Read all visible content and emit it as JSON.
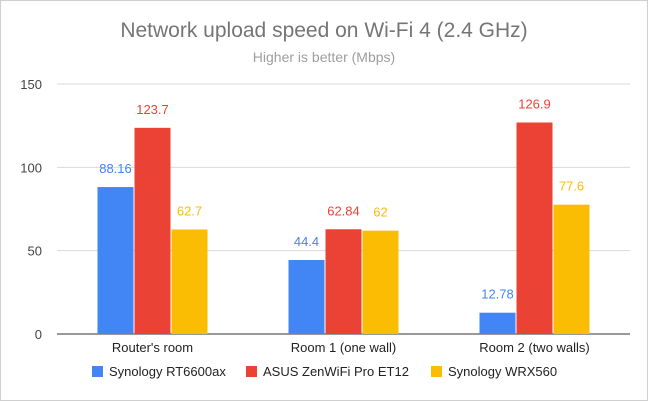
{
  "chart_data": {
    "type": "bar",
    "title": "Network upload speed on Wi-Fi 4 (2.4 GHz)",
    "subtitle": "Higher is better (Mbps)",
    "categories": [
      "Router's room",
      "Room 1 (one wall)",
      "Room 2 (two walls)"
    ],
    "series": [
      {
        "name": "Synology RT6600ax",
        "color": "#4285f4",
        "values": [
          88.16,
          44.4,
          12.78
        ],
        "labels": [
          "88.16",
          "44.4",
          "12.78"
        ]
      },
      {
        "name": "ASUS ZenWiFi Pro ET12",
        "color": "#ea4335",
        "values": [
          123.7,
          62.84,
          126.9
        ],
        "labels": [
          "123.7",
          "62.84",
          "126.9"
        ]
      },
      {
        "name": "Synology WRX560",
        "color": "#fbbc04",
        "values": [
          62.7,
          62,
          77.6
        ],
        "labels": [
          "62.7",
          "62",
          "77.6"
        ]
      }
    ],
    "ylim": [
      0,
      150
    ],
    "yticks": [
      0,
      50,
      100,
      150
    ],
    "grid": true,
    "legend": "bottom"
  }
}
